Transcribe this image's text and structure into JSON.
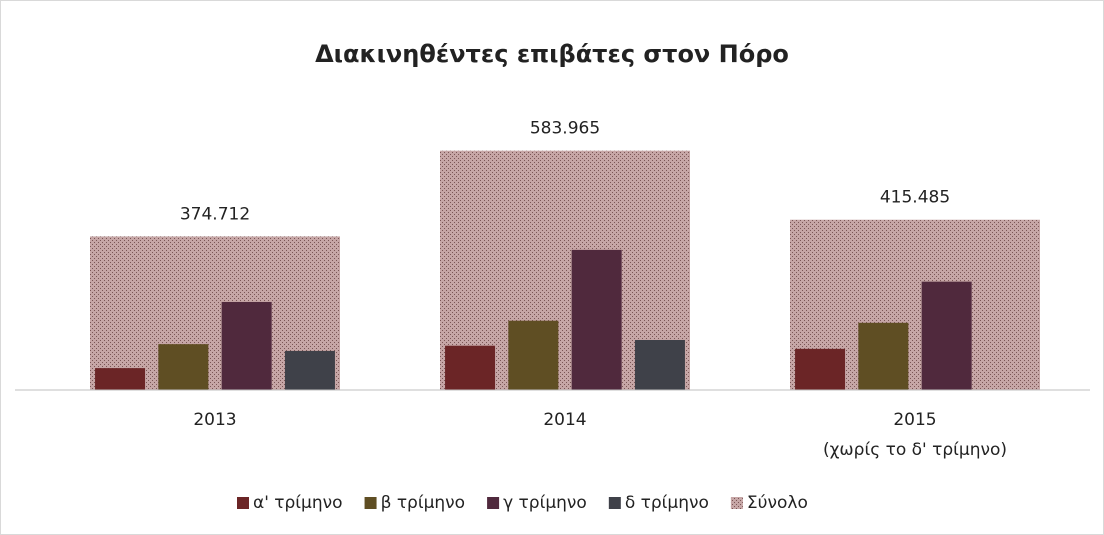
{
  "chart_data": {
    "type": "bar",
    "title": "Διακινηθέντες επιβάτες στον Πόρο",
    "categories": [
      "2013",
      "2014",
      "2015\n(χωρίς το δ' τρίμηνο)"
    ],
    "series": [
      {
        "name": "α' τρίμηνο",
        "color": "#6b2526",
        "values": [
          42000,
          85000,
          79000
        ]
      },
      {
        "name": "β τρίμηνο",
        "color": "#5f4e23",
        "values": [
          88000,
          133000,
          129000
        ]
      },
      {
        "name": "γ τρίμηνο",
        "color": "#50293d",
        "values": [
          169000,
          269000,
          208000
        ]
      },
      {
        "name": "δ τρίμηνο",
        "color": "#3f4149",
        "values": [
          75000,
          96000,
          null
        ]
      },
      {
        "name": "Σύνολο",
        "color": "#c6a6a6",
        "axis": "y2",
        "values": [
          374712,
          583965,
          415485
        ],
        "value_labels": [
          "374.712",
          "583.965",
          "415.485"
        ]
      }
    ],
    "ylim": [
      0,
      480000
    ],
    "y2lim": [
      0,
      610000
    ],
    "legend": "bottom"
  }
}
